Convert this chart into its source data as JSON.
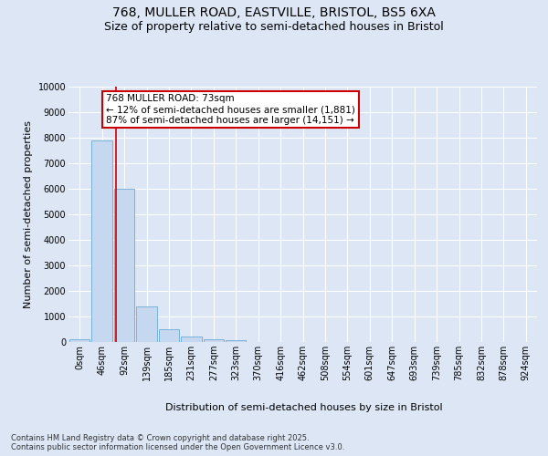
{
  "title_line1": "768, MULLER ROAD, EASTVILLE, BRISTOL, BS5 6XA",
  "title_line2": "Size of property relative to semi-detached houses in Bristol",
  "xlabel": "Distribution of semi-detached houses by size in Bristol",
  "ylabel": "Number of semi-detached properties",
  "property_address": "768 MULLER ROAD: 73sqm",
  "pct_smaller": "12% of semi-detached houses are smaller (1,881)",
  "pct_larger": "87% of semi-detached houses are larger (14,151)",
  "bar_labels": [
    "0sqm",
    "46sqm",
    "92sqm",
    "139sqm",
    "185sqm",
    "231sqm",
    "277sqm",
    "323sqm",
    "370sqm",
    "416sqm",
    "462sqm",
    "508sqm",
    "554sqm",
    "601sqm",
    "647sqm",
    "693sqm",
    "739sqm",
    "785sqm",
    "832sqm",
    "878sqm",
    "924sqm"
  ],
  "bar_heights": [
    100,
    7900,
    6000,
    1400,
    500,
    220,
    110,
    55,
    0,
    0,
    0,
    0,
    0,
    0,
    0,
    0,
    0,
    0,
    0,
    0,
    0
  ],
  "bar_color": "#c5d8f0",
  "bar_edge_color": "#6aaad4",
  "vline_color": "#cc0000",
  "vline_x": 1.62,
  "ylim": [
    0,
    10000
  ],
  "yticks": [
    0,
    1000,
    2000,
    3000,
    4000,
    5000,
    6000,
    7000,
    8000,
    9000,
    10000
  ],
  "background_color": "#dce6f5",
  "plot_bg_color": "#dce6f5",
  "annotation_box_color": "#ffffff",
  "annotation_box_edge": "#cc0000",
  "footer_text": "Contains HM Land Registry data © Crown copyright and database right 2025.\nContains public sector information licensed under the Open Government Licence v3.0.",
  "title_fontsize": 10,
  "subtitle_fontsize": 9,
  "tick_fontsize": 7,
  "ylabel_fontsize": 8,
  "xlabel_fontsize": 8,
  "annotation_fontsize": 7.5,
  "footer_fontsize": 6
}
